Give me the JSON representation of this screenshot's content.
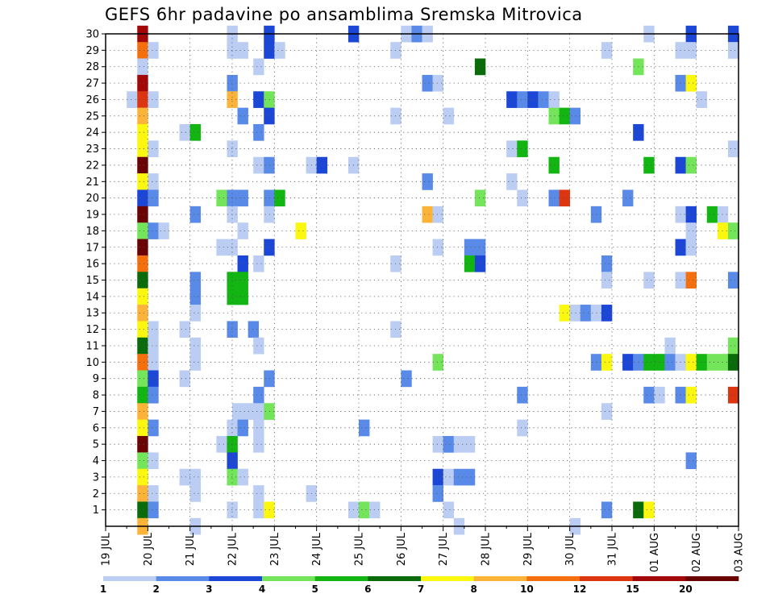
{
  "chart_data": {
    "type": "heatmap",
    "title": "GEFS 6hr padavine po ansamblima Sremska Mitrovica",
    "x_tick_labels": [
      "19 JUL",
      "20 JUL",
      "21 JUL",
      "22 JUL",
      "23 JUL",
      "24 JUL",
      "25 JUL",
      "26 JUL",
      "27 JUL",
      "28 JUL",
      "29 JUL",
      "30 JUL",
      "31 JUL",
      "01 AUG",
      "02 AUG",
      "03 AUG"
    ],
    "y_tick_labels": [
      "1",
      "2",
      "3",
      "4",
      "5",
      "6",
      "7",
      "8",
      "9",
      "10",
      "11",
      "12",
      "13",
      "14",
      "15",
      "16",
      "17",
      "18",
      "19",
      "20",
      "21",
      "22",
      "23",
      "24",
      "25",
      "26",
      "27",
      "28",
      "29",
      "30"
    ],
    "x_unit": "6h steps from 19 JUL 00Z",
    "x_range": [
      0,
      60
    ],
    "y_range": [
      0,
      30
    ],
    "grid": true,
    "colorbar": {
      "placement": "bottom",
      "labels": [
        "1",
        "2",
        "3",
        "4",
        "5",
        "6",
        "7",
        "8",
        "10",
        "12",
        "15",
        "20"
      ],
      "colors": [
        "#bccdf4",
        "#5a8ae8",
        "#1c47d6",
        "#74e45a",
        "#12b512",
        "#0a6b0a",
        "#fbf710",
        "#fcb33a",
        "#f4700e",
        "#dd3510",
        "#a20808",
        "#6a0404"
      ]
    },
    "cells": [
      [
        3.5,
        30,
        "#a20808"
      ],
      [
        12,
        30,
        "#bccdf4"
      ],
      [
        15.5,
        30,
        "#1c47d6"
      ],
      [
        23.5,
        30,
        "#1c47d6"
      ],
      [
        28.5,
        30,
        "#bccdf4"
      ],
      [
        29.5,
        30,
        "#5a8ae8"
      ],
      [
        30.5,
        30,
        "#bccdf4"
      ],
      [
        51.5,
        30,
        "#bccdf4"
      ],
      [
        55.5,
        30,
        "#1c47d6"
      ],
      [
        59.5,
        30,
        "#1c47d6"
      ],
      [
        3.5,
        29,
        "#f4700e"
      ],
      [
        4.5,
        29,
        "#bccdf4"
      ],
      [
        12,
        29,
        "#bccdf4"
      ],
      [
        13,
        29,
        "#bccdf4"
      ],
      [
        15.5,
        29,
        "#1c47d6"
      ],
      [
        16.5,
        29,
        "#bccdf4"
      ],
      [
        27.5,
        29,
        "#bccdf4"
      ],
      [
        47.5,
        29,
        "#bccdf4"
      ],
      [
        54.5,
        29,
        "#bccdf4"
      ],
      [
        55.5,
        29,
        "#bccdf4"
      ],
      [
        59.5,
        29,
        "#bccdf4"
      ],
      [
        3.5,
        28,
        "#bccdf4"
      ],
      [
        14.5,
        28,
        "#bccdf4"
      ],
      [
        35.5,
        28,
        "#0a6b0a"
      ],
      [
        50.5,
        28,
        "#74e45a"
      ],
      [
        3.5,
        27,
        "#a20808"
      ],
      [
        12,
        27,
        "#5a8ae8"
      ],
      [
        30.5,
        27,
        "#5a8ae8"
      ],
      [
        31.5,
        27,
        "#bccdf4"
      ],
      [
        54.5,
        27,
        "#5a8ae8"
      ],
      [
        55.5,
        27,
        "#fbf710"
      ],
      [
        2.5,
        26,
        "#bccdf4"
      ],
      [
        3.5,
        26,
        "#dd3510"
      ],
      [
        4.5,
        26,
        "#bccdf4"
      ],
      [
        12,
        26,
        "#fcb33a"
      ],
      [
        14.5,
        26,
        "#1c47d6"
      ],
      [
        15.5,
        26,
        "#74e45a"
      ],
      [
        38.5,
        26,
        "#1c47d6"
      ],
      [
        39.5,
        26,
        "#5a8ae8"
      ],
      [
        40.5,
        26,
        "#1c47d6"
      ],
      [
        41.5,
        26,
        "#5a8ae8"
      ],
      [
        42.5,
        26,
        "#bccdf4"
      ],
      [
        56.5,
        26,
        "#bccdf4"
      ],
      [
        3.5,
        25,
        "#fcb33a"
      ],
      [
        13,
        25,
        "#5a8ae8"
      ],
      [
        15.5,
        25,
        "#1c47d6"
      ],
      [
        27.5,
        25,
        "#bccdf4"
      ],
      [
        32.5,
        25,
        "#bccdf4"
      ],
      [
        42.5,
        25,
        "#74e45a"
      ],
      [
        43.5,
        25,
        "#12b512"
      ],
      [
        44.5,
        25,
        "#5a8ae8"
      ],
      [
        3.5,
        24,
        "#fbf710"
      ],
      [
        7.5,
        24,
        "#bccdf4"
      ],
      [
        8.5,
        24,
        "#12b512"
      ],
      [
        14.5,
        24,
        "#5a8ae8"
      ],
      [
        50.5,
        24,
        "#1c47d6"
      ],
      [
        3.5,
        23,
        "#fbf710"
      ],
      [
        4.5,
        23,
        "#bccdf4"
      ],
      [
        12,
        23,
        "#bccdf4"
      ],
      [
        38.5,
        23,
        "#bccdf4"
      ],
      [
        39.5,
        23,
        "#12b512"
      ],
      [
        59.5,
        23,
        "#bccdf4"
      ],
      [
        3.5,
        22,
        "#6a0404"
      ],
      [
        14.5,
        22,
        "#bccdf4"
      ],
      [
        15.5,
        22,
        "#5a8ae8"
      ],
      [
        19.5,
        22,
        "#bccdf4"
      ],
      [
        20.5,
        22,
        "#1c47d6"
      ],
      [
        23.5,
        22,
        "#bccdf4"
      ],
      [
        42.5,
        22,
        "#12b512"
      ],
      [
        51.5,
        22,
        "#12b512"
      ],
      [
        54.5,
        22,
        "#1c47d6"
      ],
      [
        55.5,
        22,
        "#74e45a"
      ],
      [
        3.5,
        21,
        "#fbf710"
      ],
      [
        4.5,
        21,
        "#bccdf4"
      ],
      [
        30.5,
        21,
        "#5a8ae8"
      ],
      [
        38.5,
        21,
        "#bccdf4"
      ],
      [
        3.5,
        20,
        "#1c47d6"
      ],
      [
        4.5,
        20,
        "#5a8ae8"
      ],
      [
        11,
        20,
        "#74e45a"
      ],
      [
        12,
        20,
        "#5a8ae8"
      ],
      [
        13,
        20,
        "#5a8ae8"
      ],
      [
        15.5,
        20,
        "#5a8ae8"
      ],
      [
        16.5,
        20,
        "#12b512"
      ],
      [
        35.5,
        20,
        "#74e45a"
      ],
      [
        39.5,
        20,
        "#bccdf4"
      ],
      [
        42.5,
        20,
        "#5a8ae8"
      ],
      [
        43.5,
        20,
        "#dd3510"
      ],
      [
        49.5,
        20,
        "#5a8ae8"
      ],
      [
        3.5,
        19,
        "#6a0404"
      ],
      [
        8.5,
        19,
        "#5a8ae8"
      ],
      [
        12,
        19,
        "#bccdf4"
      ],
      [
        15.5,
        19,
        "#bccdf4"
      ],
      [
        30.5,
        19,
        "#fcb33a"
      ],
      [
        31.5,
        19,
        "#bccdf4"
      ],
      [
        46.5,
        19,
        "#5a8ae8"
      ],
      [
        54.5,
        19,
        "#bccdf4"
      ],
      [
        55.5,
        19,
        "#1c47d6"
      ],
      [
        57.5,
        19,
        "#12b512"
      ],
      [
        58.5,
        19,
        "#bccdf4"
      ],
      [
        3.5,
        18,
        "#74e45a"
      ],
      [
        4.5,
        18,
        "#5a8ae8"
      ],
      [
        5.5,
        18,
        "#bccdf4"
      ],
      [
        13,
        18,
        "#bccdf4"
      ],
      [
        18.5,
        18,
        "#fbf710"
      ],
      [
        55.5,
        18,
        "#bccdf4"
      ],
      [
        58.5,
        18,
        "#fbf710"
      ],
      [
        59.5,
        18,
        "#74e45a"
      ],
      [
        3.5,
        17,
        "#6a0404"
      ],
      [
        11,
        17,
        "#bccdf4"
      ],
      [
        12,
        17,
        "#bccdf4"
      ],
      [
        15.5,
        17,
        "#1c47d6"
      ],
      [
        31.5,
        17,
        "#bccdf4"
      ],
      [
        34.5,
        17,
        "#5a8ae8"
      ],
      [
        35.5,
        17,
        "#5a8ae8"
      ],
      [
        54.5,
        17,
        "#1c47d6"
      ],
      [
        55.5,
        17,
        "#bccdf4"
      ],
      [
        3.5,
        16,
        "#f4700e"
      ],
      [
        13,
        16,
        "#1c47d6"
      ],
      [
        14.5,
        16,
        "#bccdf4"
      ],
      [
        27.5,
        16,
        "#bccdf4"
      ],
      [
        34.5,
        16,
        "#12b512"
      ],
      [
        35.5,
        16,
        "#1c47d6"
      ],
      [
        47.5,
        16,
        "#5a8ae8"
      ],
      [
        3.5,
        15,
        "#0a6b0a"
      ],
      [
        8.5,
        15,
        "#5a8ae8"
      ],
      [
        12,
        15,
        "#12b512"
      ],
      [
        13,
        15,
        "#12b512"
      ],
      [
        47.5,
        15,
        "#bccdf4"
      ],
      [
        51.5,
        15,
        "#bccdf4"
      ],
      [
        54.5,
        15,
        "#bccdf4"
      ],
      [
        55.5,
        15,
        "#f4700e"
      ],
      [
        59.5,
        15,
        "#5a8ae8"
      ],
      [
        3.5,
        14,
        "#fbf710"
      ],
      [
        8.5,
        14,
        "#5a8ae8"
      ],
      [
        12,
        14,
        "#12b512"
      ],
      [
        13,
        14,
        "#12b512"
      ],
      [
        3.5,
        13,
        "#fcb33a"
      ],
      [
        8.5,
        13,
        "#bccdf4"
      ],
      [
        43.5,
        13,
        "#fbf710"
      ],
      [
        44.5,
        13,
        "#bccdf4"
      ],
      [
        45.5,
        13,
        "#5a8ae8"
      ],
      [
        46.5,
        13,
        "#bccdf4"
      ],
      [
        47.5,
        13,
        "#1c47d6"
      ],
      [
        3.5,
        12,
        "#fbf710"
      ],
      [
        4.5,
        12,
        "#bccdf4"
      ],
      [
        7.5,
        12,
        "#bccdf4"
      ],
      [
        12,
        12,
        "#5a8ae8"
      ],
      [
        14,
        12,
        "#5a8ae8"
      ],
      [
        27.5,
        12,
        "#bccdf4"
      ],
      [
        3.5,
        11,
        "#0a6b0a"
      ],
      [
        4.5,
        11,
        "#bccdf4"
      ],
      [
        8.5,
        11,
        "#bccdf4"
      ],
      [
        14.5,
        11,
        "#bccdf4"
      ],
      [
        53.5,
        11,
        "#bccdf4"
      ],
      [
        59.5,
        11,
        "#74e45a"
      ],
      [
        3.5,
        10,
        "#f4700e"
      ],
      [
        4.5,
        10,
        "#bccdf4"
      ],
      [
        8.5,
        10,
        "#bccdf4"
      ],
      [
        31.5,
        10,
        "#74e45a"
      ],
      [
        46.5,
        10,
        "#5a8ae8"
      ],
      [
        47.5,
        10,
        "#fbf710"
      ],
      [
        49.5,
        10,
        "#1c47d6"
      ],
      [
        50.5,
        10,
        "#5a8ae8"
      ],
      [
        51.5,
        10,
        "#12b512"
      ],
      [
        52.5,
        10,
        "#12b512"
      ],
      [
        53.5,
        10,
        "#5a8ae8"
      ],
      [
        54.5,
        10,
        "#bccdf4"
      ],
      [
        55.5,
        10,
        "#fbf710"
      ],
      [
        56.5,
        10,
        "#12b512"
      ],
      [
        57.5,
        10,
        "#74e45a"
      ],
      [
        58.5,
        10,
        "#74e45a"
      ],
      [
        59.5,
        10,
        "#0a6b0a"
      ],
      [
        3.5,
        9,
        "#74e45a"
      ],
      [
        4.5,
        9,
        "#1c47d6"
      ],
      [
        7.5,
        9,
        "#bccdf4"
      ],
      [
        15.5,
        9,
        "#5a8ae8"
      ],
      [
        28.5,
        9,
        "#5a8ae8"
      ],
      [
        3.5,
        8,
        "#12b512"
      ],
      [
        4.5,
        8,
        "#5a8ae8"
      ],
      [
        14.5,
        8,
        "#5a8ae8"
      ],
      [
        39.5,
        8,
        "#5a8ae8"
      ],
      [
        51.5,
        8,
        "#5a8ae8"
      ],
      [
        52.5,
        8,
        "#bccdf4"
      ],
      [
        54.5,
        8,
        "#5a8ae8"
      ],
      [
        55.5,
        8,
        "#fbf710"
      ],
      [
        59.5,
        8,
        "#dd3510"
      ],
      [
        3.5,
        7,
        "#fcb33a"
      ],
      [
        12.5,
        7,
        "#bccdf4"
      ],
      [
        13.5,
        7,
        "#bccdf4"
      ],
      [
        14.5,
        7,
        "#bccdf4"
      ],
      [
        15.5,
        7,
        "#74e45a"
      ],
      [
        47.5,
        7,
        "#bccdf4"
      ],
      [
        3.5,
        6,
        "#fbf710"
      ],
      [
        4.5,
        6,
        "#5a8ae8"
      ],
      [
        12,
        6,
        "#bccdf4"
      ],
      [
        13,
        6,
        "#5a8ae8"
      ],
      [
        14.5,
        6,
        "#bccdf4"
      ],
      [
        24.5,
        6,
        "#5a8ae8"
      ],
      [
        39.5,
        6,
        "#bccdf4"
      ],
      [
        3.5,
        5,
        "#6a0404"
      ],
      [
        11,
        5,
        "#bccdf4"
      ],
      [
        12,
        5,
        "#12b512"
      ],
      [
        14.5,
        5,
        "#bccdf4"
      ],
      [
        31.5,
        5,
        "#bccdf4"
      ],
      [
        32.5,
        5,
        "#5a8ae8"
      ],
      [
        33.5,
        5,
        "#bccdf4"
      ],
      [
        34.5,
        5,
        "#bccdf4"
      ],
      [
        3.5,
        4,
        "#74e45a"
      ],
      [
        4.5,
        4,
        "#bccdf4"
      ],
      [
        12,
        4,
        "#1c47d6"
      ],
      [
        55.5,
        4,
        "#5a8ae8"
      ],
      [
        3.5,
        3,
        "#fbf710"
      ],
      [
        7.5,
        3,
        "#bccdf4"
      ],
      [
        8.5,
        3,
        "#bccdf4"
      ],
      [
        12,
        3,
        "#74e45a"
      ],
      [
        13,
        3,
        "#bccdf4"
      ],
      [
        31.5,
        3,
        "#1c47d6"
      ],
      [
        32.5,
        3,
        "#bccdf4"
      ],
      [
        33.5,
        3,
        "#5a8ae8"
      ],
      [
        34.5,
        3,
        "#5a8ae8"
      ],
      [
        3.5,
        2,
        "#fcb33a"
      ],
      [
        4.5,
        2,
        "#bccdf4"
      ],
      [
        8.5,
        2,
        "#bccdf4"
      ],
      [
        14.5,
        2,
        "#bccdf4"
      ],
      [
        19.5,
        2,
        "#bccdf4"
      ],
      [
        31.5,
        2,
        "#5a8ae8"
      ],
      [
        3.5,
        1,
        "#0a6b0a"
      ],
      [
        4.5,
        1,
        "#5a8ae8"
      ],
      [
        12,
        1,
        "#bccdf4"
      ],
      [
        14.5,
        1,
        "#bccdf4"
      ],
      [
        15.5,
        1,
        "#fbf710"
      ],
      [
        23.5,
        1,
        "#bccdf4"
      ],
      [
        24.5,
        1,
        "#74e45a"
      ],
      [
        25.5,
        1,
        "#bccdf4"
      ],
      [
        32.5,
        1,
        "#bccdf4"
      ],
      [
        47.5,
        1,
        "#5a8ae8"
      ],
      [
        50.5,
        1,
        "#0a6b0a"
      ],
      [
        51.5,
        1,
        "#fbf710"
      ],
      [
        3.5,
        0,
        "#fcb33a"
      ],
      [
        8.5,
        0,
        "#bccdf4"
      ],
      [
        33.5,
        0,
        "#bccdf4"
      ],
      [
        44.5,
        0,
        "#bccdf4"
      ]
    ]
  }
}
